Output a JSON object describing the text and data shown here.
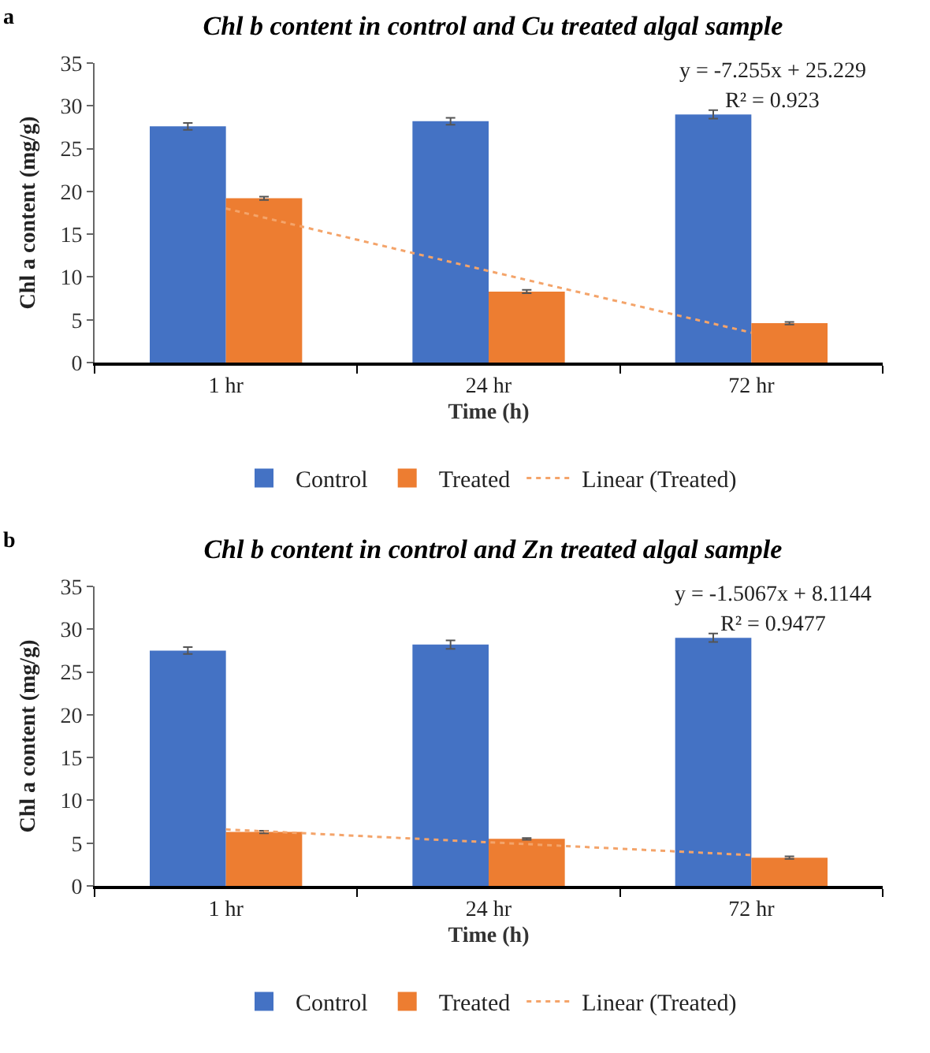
{
  "chart_data": [
    {
      "type": "bar",
      "title": "Chl b content in control and Cu treated algal sample",
      "xlabel": "Time (h)",
      "ylabel": "Chl a content (mg/g)",
      "categories": [
        "1 hr",
        "24 hr",
        "72 hr"
      ],
      "series": [
        {
          "name": "Control",
          "color": "#4472c4",
          "values": [
            27.6,
            28.2,
            29.0
          ],
          "errors": [
            0.4,
            0.4,
            0.5
          ]
        },
        {
          "name": "Treated",
          "color": "#ed7d31",
          "values": [
            19.2,
            8.3,
            4.6
          ],
          "errors": [
            0.2,
            0.2,
            0.15
          ]
        },
        {
          "name": "Linear (Treated)",
          "type": "line",
          "line_style": "dotted",
          "color": "#f4a46a",
          "x": [
            "1 hr",
            "24 hr",
            "72 hr"
          ],
          "values": [
            18.0,
            10.7,
            3.5
          ]
        }
      ],
      "ylim": [
        0,
        35
      ],
      "yticks": [
        0,
        5,
        10,
        15,
        20,
        25,
        30,
        35
      ],
      "legend": "bottom",
      "annotations": [
        "a",
        "y = -7.255x + 25.229",
        "R² = 0.923"
      ]
    },
    {
      "type": "bar",
      "title": "Chl b content in control and Zn treated algal sample",
      "xlabel": "Time (h)",
      "ylabel": "Chl a content (mg/g)",
      "categories": [
        "1 hr",
        "24 hr",
        "72 hr"
      ],
      "series": [
        {
          "name": "Control",
          "color": "#4472c4",
          "values": [
            27.5,
            28.2,
            29.0
          ],
          "errors": [
            0.4,
            0.5,
            0.5
          ]
        },
        {
          "name": "Treated",
          "color": "#ed7d31",
          "values": [
            6.3,
            5.5,
            3.3
          ],
          "errors": [
            0.15,
            0.1,
            0.15
          ]
        },
        {
          "name": "Linear (Treated)",
          "type": "line",
          "line_style": "dotted",
          "color": "#f4a46a",
          "x": [
            "1 hr",
            "24 hr",
            "72 hr"
          ],
          "values": [
            6.6,
            5.1,
            3.6
          ]
        }
      ],
      "ylim": [
        0,
        35
      ],
      "yticks": [
        0,
        5,
        10,
        15,
        20,
        25,
        30,
        35
      ],
      "legend": "bottom",
      "annotations": [
        "b",
        "y = -1.5067x + 8.1144",
        "R² = 0.9477"
      ]
    }
  ]
}
